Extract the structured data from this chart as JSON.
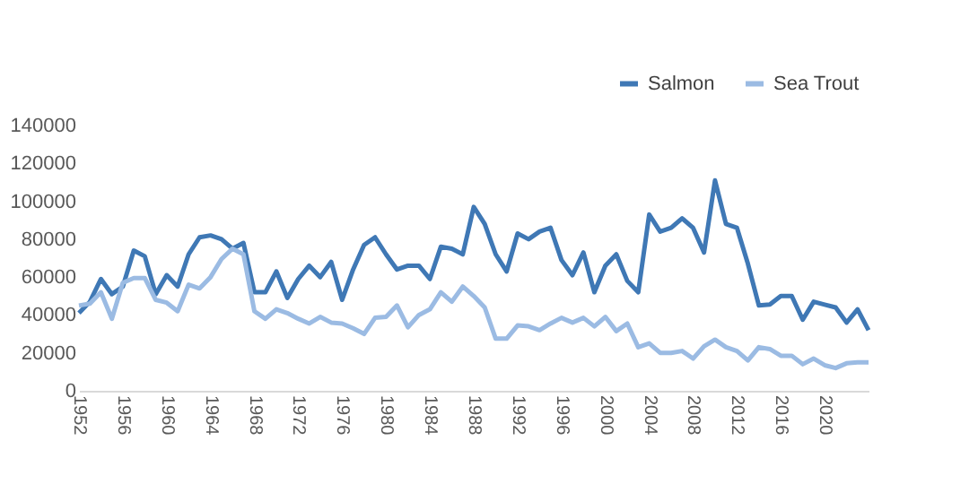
{
  "chart_data": {
    "type": "line",
    "x": [
      1952,
      1953,
      1954,
      1955,
      1956,
      1957,
      1958,
      1959,
      1960,
      1961,
      1962,
      1963,
      1964,
      1965,
      1966,
      1967,
      1968,
      1969,
      1970,
      1971,
      1972,
      1973,
      1974,
      1975,
      1976,
      1977,
      1978,
      1979,
      1980,
      1981,
      1982,
      1983,
      1984,
      1985,
      1986,
      1987,
      1988,
      1989,
      1990,
      1991,
      1992,
      1993,
      1994,
      1995,
      1996,
      1997,
      1998,
      1999,
      2000,
      2001,
      2002,
      2003,
      2004,
      2005,
      2006,
      2007,
      2008,
      2009,
      2010,
      2011,
      2012,
      2013,
      2014,
      2015,
      2016,
      2017,
      2018,
      2019,
      2020,
      2021,
      2022,
      2023,
      2024
    ],
    "series": [
      {
        "name": "Salmon",
        "color": "#3f78b5",
        "values": [
          41000,
          47000,
          59000,
          51000,
          55000,
          74000,
          71000,
          51000,
          61000,
          55000,
          72000,
          81000,
          82000,
          80000,
          75000,
          78000,
          52000,
          52000,
          63000,
          49000,
          59000,
          66000,
          60000,
          68000,
          48000,
          64000,
          77000,
          81000,
          72000,
          64000,
          66000,
          66000,
          59000,
          76000,
          75000,
          72000,
          97000,
          88000,
          72000,
          63000,
          83000,
          80000,
          84000,
          86000,
          69000,
          61000,
          73000,
          52000,
          66000,
          72000,
          58000,
          52000,
          93000,
          84000,
          86000,
          91000,
          86000,
          73000,
          111000,
          88000,
          86000,
          67000,
          45000,
          45500,
          50000,
          50000,
          37500,
          47000,
          45500,
          44000,
          36000,
          43000,
          32000
        ]
      },
      {
        "name": "Sea Trout",
        "color": "#9bbbe3",
        "values": [
          45000,
          46000,
          52000,
          38000,
          57000,
          59500,
          59500,
          48000,
          46500,
          42000,
          56000,
          54000,
          60000,
          69500,
          75000,
          72000,
          42000,
          38000,
          43000,
          41000,
          38000,
          35500,
          39000,
          36000,
          35500,
          33000,
          30000,
          38500,
          39000,
          45000,
          33500,
          40000,
          43000,
          52000,
          47000,
          55000,
          50000,
          44000,
          27500,
          27500,
          34500,
          34000,
          32000,
          35500,
          38500,
          36000,
          38500,
          34000,
          39000,
          31500,
          35500,
          23000,
          25000,
          20000,
          20000,
          21000,
          17000,
          23500,
          27000,
          23000,
          21000,
          16000,
          23000,
          22000,
          18500,
          18500,
          14000,
          17000,
          13500,
          12000,
          14500,
          15000,
          15000
        ]
      }
    ],
    "xlim": [
      1952,
      2024
    ],
    "xticks": [
      1952,
      1956,
      1960,
      1964,
      1968,
      1972,
      1976,
      1980,
      1984,
      1988,
      1992,
      1996,
      2000,
      2004,
      2008,
      2012,
      2016,
      2020
    ],
    "ylim": [
      0,
      140000
    ],
    "yticks": [
      0,
      20000,
      40000,
      60000,
      80000,
      100000,
      120000,
      140000
    ],
    "grid": false,
    "legend": "top right",
    "marker": "none",
    "line_style": "solid"
  }
}
